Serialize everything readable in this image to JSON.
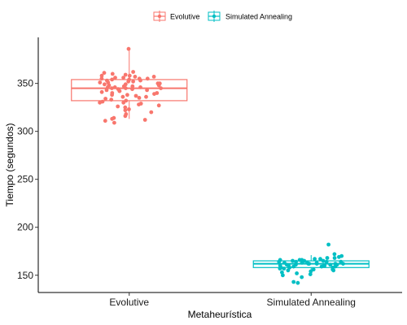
{
  "chart_data": {
    "type": "box",
    "xlabel": "Metaheurística",
    "ylabel": "Tiempo (segundos)",
    "ylim": [
      132,
      398
    ],
    "yticks": [
      150,
      200,
      250,
      300,
      350
    ],
    "legend": {
      "placement": "top",
      "entries": [
        "Evolutive",
        "Simulated Annealing"
      ]
    },
    "grid": false,
    "categories": [
      "Evolutive",
      "Simulated Annealing"
    ],
    "series": [
      {
        "name": "Evolutive",
        "color": "#F8766D",
        "box": {
          "min": 313,
          "q1": 332,
          "median": 345,
          "q3": 354,
          "max": 386
        },
        "points": [
          386,
          362,
          361,
          360,
          359,
          358,
          358,
          357,
          357,
          356,
          356,
          355,
          355,
          355,
          354,
          354,
          353,
          353,
          352,
          352,
          351,
          351,
          350,
          350,
          349,
          349,
          348,
          348,
          347,
          347,
          346,
          346,
          346,
          345,
          345,
          345,
          344,
          344,
          343,
          343,
          342,
          342,
          341,
          340,
          340,
          339,
          338,
          338,
          337,
          336,
          336,
          335,
          334,
          333,
          332,
          331,
          330,
          330,
          329,
          328,
          327,
          326,
          325,
          323,
          322,
          320,
          318,
          316,
          314,
          313,
          312,
          311,
          309
        ]
      },
      {
        "name": "Simulated Annealing",
        "color": "#00BFC4",
        "box": {
          "min": 151,
          "q1": 158,
          "median": 162,
          "q3": 165,
          "max": 171
        },
        "points": [
          182,
          172,
          170,
          169,
          168,
          168,
          167,
          167,
          166,
          166,
          166,
          165,
          165,
          165,
          164,
          164,
          164,
          164,
          163,
          163,
          163,
          163,
          162,
          162,
          162,
          162,
          162,
          161,
          161,
          161,
          161,
          160,
          160,
          160,
          160,
          159,
          159,
          159,
          158,
          158,
          158,
          157,
          157,
          156,
          156,
          155,
          155,
          154,
          153,
          152,
          151,
          150,
          148,
          143,
          142
        ]
      }
    ]
  }
}
